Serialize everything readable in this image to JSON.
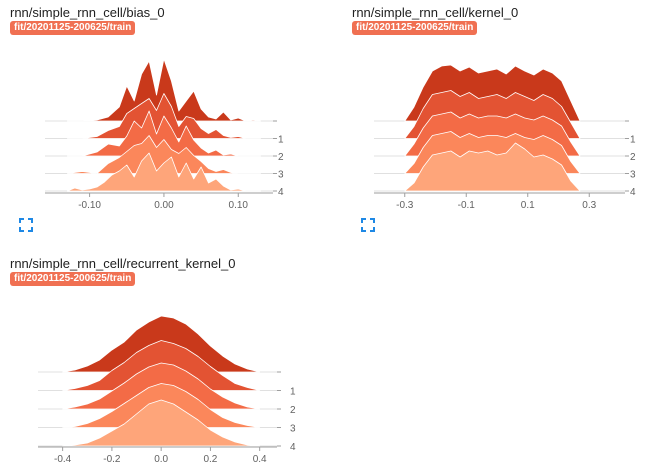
{
  "icons": {
    "expand": "fullscreen-icon",
    "accent": "#1e88e5"
  },
  "colors": [
    "#c9391b",
    "#e35333",
    "#f36b46",
    "#fb875b",
    "#fea57a"
  ],
  "chart_data": [
    {
      "type": "area",
      "title": "rnn/simple_rnn_cell/bias_0",
      "run": "fit/20201125-200625/train",
      "steps": [
        "0",
        "1",
        "2",
        "3",
        "4"
      ],
      "step_labels": [
        "",
        "1",
        "2",
        "3",
        "4"
      ],
      "xlim": [
        -0.16,
        0.14
      ],
      "xticks": [
        -0.1,
        0.0,
        0.1
      ],
      "xtick_labels": [
        "-0.10",
        "0.00",
        "0.10"
      ],
      "max_density": 65,
      "series": [
        {
          "x": [
            -0.13,
            -0.11,
            -0.09,
            -0.075,
            -0.06,
            -0.05,
            -0.04,
            -0.03,
            -0.02,
            -0.01,
            0.0,
            0.01,
            0.02,
            0.03,
            0.04,
            0.05,
            0.06,
            0.07,
            0.08,
            0.09,
            0.1,
            0.11,
            0.12,
            0.13
          ],
          "y": [
            0,
            0,
            1,
            4,
            14,
            35,
            20,
            47,
            60,
            26,
            62,
            40,
            10,
            20,
            30,
            12,
            4,
            2,
            9,
            1,
            3,
            0,
            1,
            0
          ]
        },
        {
          "x": [
            -0.13,
            -0.11,
            -0.09,
            -0.075,
            -0.06,
            -0.05,
            -0.04,
            -0.03,
            -0.02,
            -0.01,
            0.0,
            0.01,
            0.02,
            0.03,
            0.04,
            0.05,
            0.06,
            0.07,
            0.08,
            0.09,
            0.1,
            0.11,
            0.12,
            0.13
          ],
          "y": [
            0,
            0,
            2,
            8,
            12,
            25,
            30,
            35,
            40,
            28,
            45,
            32,
            12,
            22,
            20,
            10,
            5,
            9,
            3,
            1,
            2,
            0,
            0,
            0
          ]
        },
        {
          "x": [
            -0.13,
            -0.11,
            -0.09,
            -0.075,
            -0.06,
            -0.05,
            -0.04,
            -0.03,
            -0.02,
            -0.01,
            0.0,
            0.01,
            0.02,
            0.03,
            0.04,
            0.05,
            0.06,
            0.07,
            0.08,
            0.09,
            0.1,
            0.11,
            0.12,
            0.13
          ],
          "y": [
            0,
            0,
            4,
            12,
            10,
            20,
            35,
            28,
            45,
            22,
            40,
            28,
            14,
            30,
            16,
            8,
            3,
            6,
            1,
            2,
            0,
            0,
            0,
            0
          ]
        },
        {
          "x": [
            -0.13,
            -0.11,
            -0.09,
            -0.075,
            -0.06,
            -0.05,
            -0.04,
            -0.03,
            -0.02,
            -0.01,
            0.0,
            0.01,
            0.02,
            0.03,
            0.04,
            0.05,
            0.06,
            0.07,
            0.08,
            0.09,
            0.1,
            0.11,
            0.12,
            0.13
          ],
          "y": [
            0,
            2,
            0,
            10,
            16,
            22,
            28,
            30,
            38,
            26,
            34,
            24,
            20,
            26,
            18,
            12,
            5,
            2,
            4,
            1,
            0,
            0,
            0,
            0
          ]
        },
        {
          "x": [
            -0.13,
            -0.12,
            -0.11,
            -0.1,
            -0.09,
            -0.08,
            -0.07,
            -0.06,
            -0.05,
            -0.04,
            -0.03,
            -0.02,
            -0.01,
            0.0,
            0.01,
            0.02,
            0.03,
            0.04,
            0.05,
            0.06,
            0.07,
            0.08,
            0.09,
            0.1,
            0.11,
            0.12,
            0.13
          ],
          "y": [
            0,
            3,
            1,
            2,
            4,
            9,
            16,
            20,
            26,
            14,
            30,
            38,
            20,
            28,
            34,
            14,
            28,
            12,
            24,
            8,
            12,
            5,
            1,
            2,
            0,
            0,
            0
          ]
        }
      ]
    },
    {
      "type": "area",
      "title": "rnn/simple_rnn_cell/kernel_0",
      "run": "fit/20201125-200625/train",
      "steps": [
        "0",
        "1",
        "2",
        "3",
        "4"
      ],
      "step_labels": [
        "",
        "1",
        "2",
        "3",
        "4"
      ],
      "xlim": [
        -0.4,
        0.4
      ],
      "xticks": [
        -0.3,
        -0.1,
        0.1,
        0.3
      ],
      "xtick_labels": [
        "-0.3",
        "-0.1",
        "0.1",
        "0.3"
      ],
      "max_density": 65,
      "series": [
        {
          "x": [
            -0.3,
            -0.27,
            -0.24,
            -0.21,
            -0.18,
            -0.15,
            -0.12,
            -0.09,
            -0.06,
            -0.03,
            0.0,
            0.03,
            0.06,
            0.09,
            0.12,
            0.15,
            0.18,
            0.21,
            0.24,
            0.27
          ],
          "y": [
            0,
            14,
            34,
            50,
            55,
            56,
            50,
            54,
            48,
            50,
            52,
            47,
            55,
            50,
            46,
            52,
            48,
            40,
            20,
            0
          ]
        },
        {
          "x": [
            -0.3,
            -0.27,
            -0.24,
            -0.21,
            -0.18,
            -0.15,
            -0.12,
            -0.09,
            -0.06,
            -0.03,
            0.0,
            0.03,
            0.06,
            0.09,
            0.12,
            0.15,
            0.18,
            0.21,
            0.24,
            0.27
          ],
          "y": [
            0,
            12,
            30,
            44,
            46,
            48,
            42,
            46,
            40,
            42,
            44,
            40,
            46,
            42,
            38,
            44,
            40,
            32,
            16,
            0
          ]
        },
        {
          "x": [
            -0.3,
            -0.27,
            -0.24,
            -0.21,
            -0.18,
            -0.15,
            -0.12,
            -0.09,
            -0.06,
            -0.03,
            0.0,
            0.03,
            0.06,
            0.09,
            0.12,
            0.15,
            0.18,
            0.21,
            0.24,
            0.27
          ],
          "y": [
            0,
            12,
            28,
            40,
            42,
            44,
            38,
            42,
            38,
            40,
            40,
            38,
            42,
            38,
            36,
            40,
            36,
            30,
            14,
            0
          ]
        },
        {
          "x": [
            -0.3,
            -0.27,
            -0.24,
            -0.21,
            -0.18,
            -0.15,
            -0.12,
            -0.09,
            -0.06,
            -0.03,
            0.0,
            0.03,
            0.06,
            0.09,
            0.12,
            0.15,
            0.18,
            0.21,
            0.24,
            0.27
          ],
          "y": [
            0,
            10,
            26,
            38,
            40,
            42,
            36,
            40,
            36,
            38,
            38,
            36,
            40,
            36,
            34,
            38,
            34,
            28,
            12,
            0
          ]
        },
        {
          "x": [
            -0.3,
            -0.27,
            -0.24,
            -0.21,
            -0.18,
            -0.15,
            -0.12,
            -0.09,
            -0.06,
            -0.03,
            0.0,
            0.03,
            0.06,
            0.09,
            0.12,
            0.15,
            0.18,
            0.21,
            0.24,
            0.27
          ],
          "y": [
            0,
            8,
            24,
            36,
            38,
            40,
            34,
            40,
            38,
            40,
            36,
            38,
            48,
            42,
            34,
            36,
            32,
            26,
            10,
            0
          ]
        }
      ]
    },
    {
      "type": "area",
      "title": "rnn/simple_rnn_cell/recurrent_kernel_0",
      "run": "fit/20201125-200625/train",
      "steps": [
        "0",
        "1",
        "2",
        "3",
        "4"
      ],
      "step_labels": [
        "",
        "1",
        "2",
        "3",
        "4"
      ],
      "xlim": [
        -0.5,
        0.45
      ],
      "xticks": [
        -0.4,
        -0.2,
        0.0,
        0.2,
        0.4
      ],
      "xtick_labels": [
        "-0.4",
        "-0.2",
        "0.0",
        "0.2",
        "0.4"
      ],
      "max_density": 65,
      "series": [
        {
          "x": [
            -0.4,
            -0.35,
            -0.3,
            -0.25,
            -0.2,
            -0.15,
            -0.1,
            -0.05,
            0.0,
            0.05,
            0.1,
            0.15,
            0.2,
            0.25,
            0.3,
            0.35,
            0.4
          ],
          "y": [
            0,
            2,
            6,
            12,
            22,
            30,
            42,
            50,
            56,
            54,
            48,
            38,
            26,
            16,
            8,
            3,
            0
          ]
        },
        {
          "x": [
            -0.4,
            -0.35,
            -0.3,
            -0.25,
            -0.2,
            -0.15,
            -0.1,
            -0.05,
            0.0,
            0.05,
            0.1,
            0.15,
            0.2,
            0.25,
            0.3,
            0.35,
            0.4
          ],
          "y": [
            0,
            2,
            5,
            10,
            20,
            28,
            38,
            45,
            50,
            47,
            42,
            34,
            24,
            15,
            7,
            3,
            0
          ]
        },
        {
          "x": [
            -0.4,
            -0.35,
            -0.3,
            -0.25,
            -0.2,
            -0.15,
            -0.1,
            -0.05,
            0.0,
            0.05,
            0.1,
            0.15,
            0.2,
            0.25,
            0.3,
            0.35,
            0.4
          ],
          "y": [
            0,
            2,
            5,
            10,
            18,
            26,
            35,
            42,
            46,
            44,
            38,
            30,
            20,
            12,
            6,
            2,
            0
          ]
        },
        {
          "x": [
            -0.4,
            -0.35,
            -0.3,
            -0.25,
            -0.2,
            -0.15,
            -0.1,
            -0.05,
            0.0,
            0.05,
            0.1,
            0.15,
            0.2,
            0.25,
            0.3,
            0.35,
            0.4
          ],
          "y": [
            0,
            1,
            4,
            9,
            16,
            24,
            32,
            40,
            44,
            42,
            36,
            28,
            18,
            10,
            5,
            2,
            0
          ]
        },
        {
          "x": [
            -0.4,
            -0.35,
            -0.3,
            -0.25,
            -0.2,
            -0.15,
            -0.1,
            -0.05,
            0.0,
            0.05,
            0.1,
            0.15,
            0.2,
            0.25,
            0.3,
            0.35,
            0.4
          ],
          "y": [
            0,
            1,
            3,
            8,
            15,
            22,
            32,
            42,
            46,
            42,
            34,
            26,
            16,
            9,
            4,
            1,
            0
          ]
        }
      ]
    }
  ]
}
